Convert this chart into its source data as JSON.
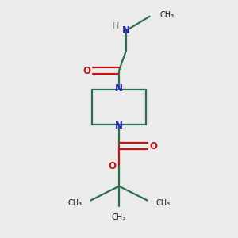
{
  "background_color": "#ebebeb",
  "bond_color": "#2a6e4e",
  "N_color": "#2222bb",
  "O_color": "#cc1111",
  "H_color": "#888888",
  "line_width": 1.6,
  "figsize": [
    3.0,
    3.0
  ],
  "dpi": 100,
  "xlim": [
    0,
    10
  ],
  "ylim": [
    0,
    10
  ]
}
